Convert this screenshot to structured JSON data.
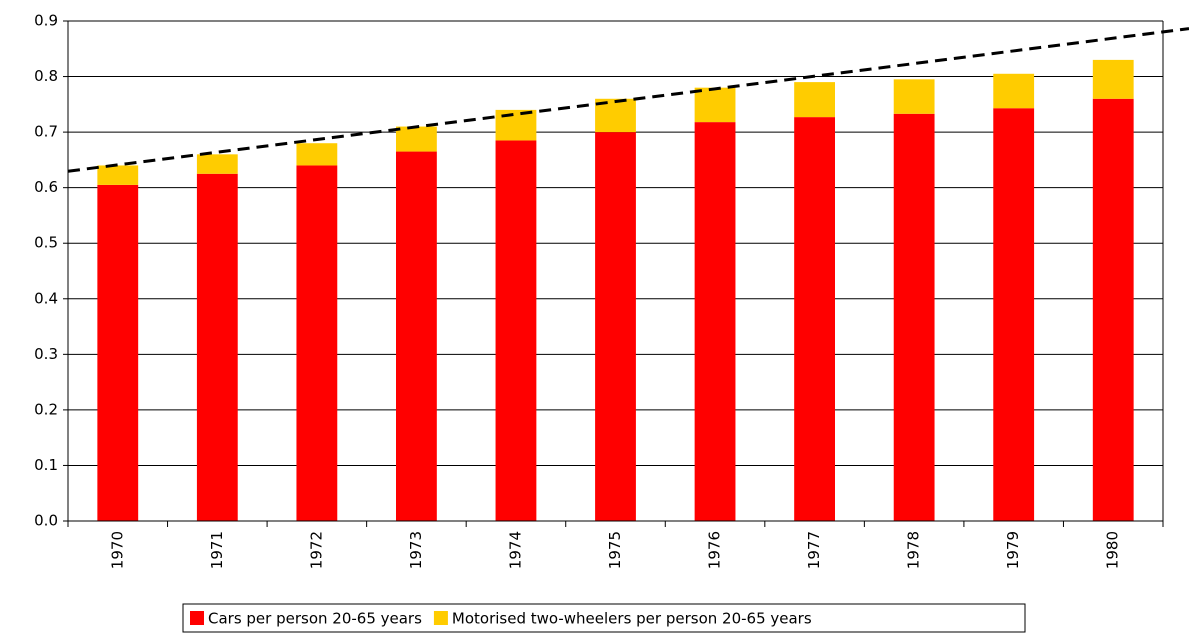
{
  "chart_data": {
    "type": "stacked_bar",
    "categories": [
      "1970",
      "1971",
      "1972",
      "1973",
      "1974",
      "1975",
      "1976",
      "1977",
      "1978",
      "1979",
      "1980"
    ],
    "series": [
      {
        "name": "Cars per person 20-65 years",
        "color": "#ff0000",
        "values": [
          0.605,
          0.625,
          0.64,
          0.665,
          0.685,
          0.7,
          0.718,
          0.727,
          0.733,
          0.743,
          0.76
        ]
      },
      {
        "name": "Motorised two-wheelers per person 20-65 years",
        "color": "#ffcc00",
        "values": [
          0.035,
          0.035,
          0.04,
          0.045,
          0.055,
          0.06,
          0.062,
          0.063,
          0.062,
          0.062,
          0.07
        ]
      }
    ],
    "trend_line": {
      "values": [
        0.641,
        0.869
      ],
      "color": "#000000"
    },
    "ylim": [
      0,
      0.9
    ],
    "yticks": [
      {
        "value": 0,
        "label": "0.0"
      },
      0.1,
      0.2,
      0.3,
      0.4,
      0.5,
      0.6,
      0.7,
      0.8,
      0.9
    ],
    "grid": true
  }
}
